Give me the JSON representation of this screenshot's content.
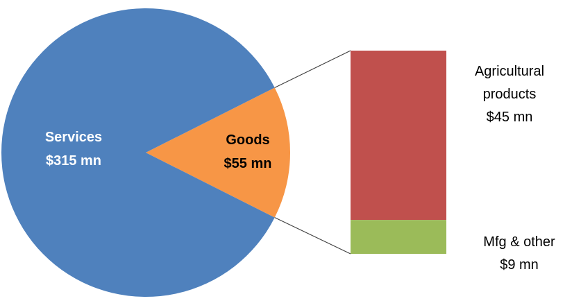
{
  "chart_data": {
    "type": "pie",
    "title": "",
    "pie": {
      "slices": [
        {
          "key": "services",
          "name": "Services",
          "value": 315,
          "value_label": "$315 mn",
          "color": "#4F81BD",
          "label_color": "#FFFFFF"
        },
        {
          "key": "goods",
          "name": "Goods",
          "value": 55,
          "value_label": "$55 mn",
          "color": "#F79646",
          "label_color": "#000000"
        }
      ]
    },
    "breakdown": {
      "parent": "Goods",
      "segments": [
        {
          "key": "agricultural",
          "name_lines": [
            "Agricultural",
            "products"
          ],
          "value": 45,
          "value_label": "$45 mn",
          "color": "#C0504D"
        },
        {
          "key": "mfg",
          "name_lines": [
            "Mfg & other"
          ],
          "value": 9,
          "value_label": "$9 mn",
          "color": "#9BBB59"
        }
      ]
    },
    "connector_color": "#404040"
  }
}
